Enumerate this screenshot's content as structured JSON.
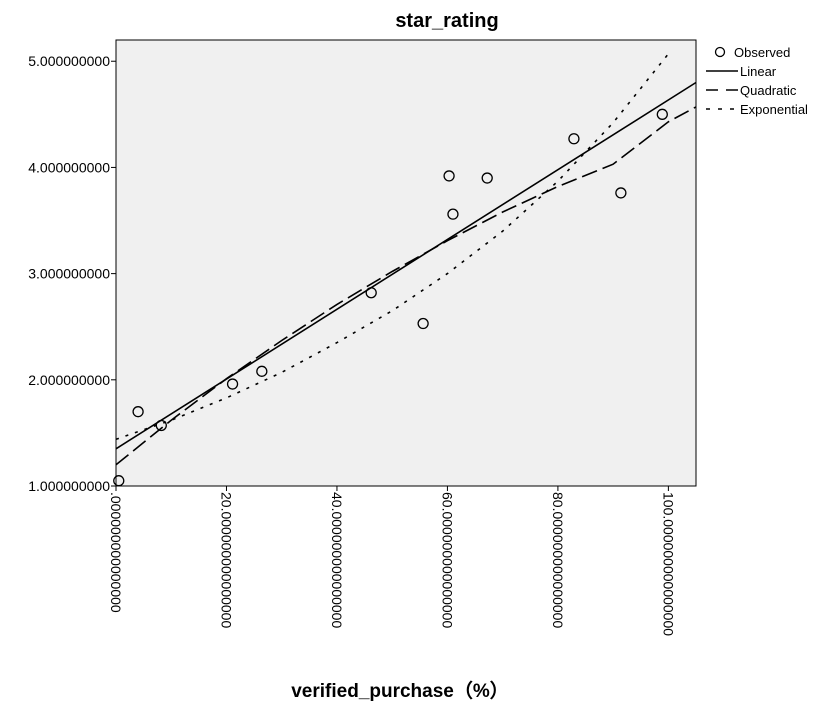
{
  "chart_data": {
    "type": "scatter",
    "title": "star_rating",
    "xlabel": "verified_purchase（%）",
    "ylabel": "",
    "xlim": [
      0,
      105
    ],
    "ylim": [
      1,
      5.2
    ],
    "x_ticks": [
      0,
      20,
      40,
      60,
      80,
      100
    ],
    "x_tick_labels": [
      ".000000000000000",
      "20.000000000000000",
      "40.000000000000000",
      "60.000000000000000",
      "80.000000000000000",
      "100.000000000000000"
    ],
    "y_ticks": [
      1,
      2,
      3,
      4,
      5
    ],
    "y_tick_labels": [
      "1.000000000",
      "2.000000000",
      "3.000000000",
      "4.000000000",
      "5.000000000"
    ],
    "grid": false,
    "legend_position": "top-right",
    "series": [
      {
        "name": "Observed",
        "kind": "points",
        "x": [
          0.5,
          4.0,
          8.2,
          21.1,
          26.4,
          46.2,
          55.6,
          60.3,
          61.0,
          67.2,
          82.9,
          91.4,
          98.9
        ],
        "y": [
          1.05,
          1.7,
          1.57,
          1.96,
          2.08,
          2.82,
          2.53,
          3.92,
          3.56,
          3.9,
          4.27,
          3.76,
          4.5
        ]
      },
      {
        "name": "Linear",
        "kind": "line",
        "style": "solid",
        "x": [
          0,
          105
        ],
        "y": [
          1.35,
          4.8
        ]
      },
      {
        "name": "Quadratic",
        "kind": "line",
        "style": "dashed",
        "x": [
          0,
          10,
          20,
          30,
          40,
          50,
          60,
          70,
          80,
          90,
          100,
          105
        ],
        "y": [
          1.2,
          1.62,
          2.01,
          2.37,
          2.71,
          3.02,
          3.31,
          3.58,
          3.82,
          4.03,
          4.43,
          4.57
        ]
      },
      {
        "name": "Exponential",
        "kind": "line",
        "style": "dotted",
        "x": [
          0,
          10,
          20,
          30,
          40,
          50,
          60,
          70,
          80,
          90,
          100
        ],
        "y": [
          1.44,
          1.62,
          1.83,
          2.07,
          2.35,
          2.65,
          3.0,
          3.4,
          3.87,
          4.42,
          5.07
        ]
      }
    ],
    "colors": {
      "plot_background": "#f0f0f0",
      "axis": "#000000",
      "marker": "#000000"
    }
  }
}
